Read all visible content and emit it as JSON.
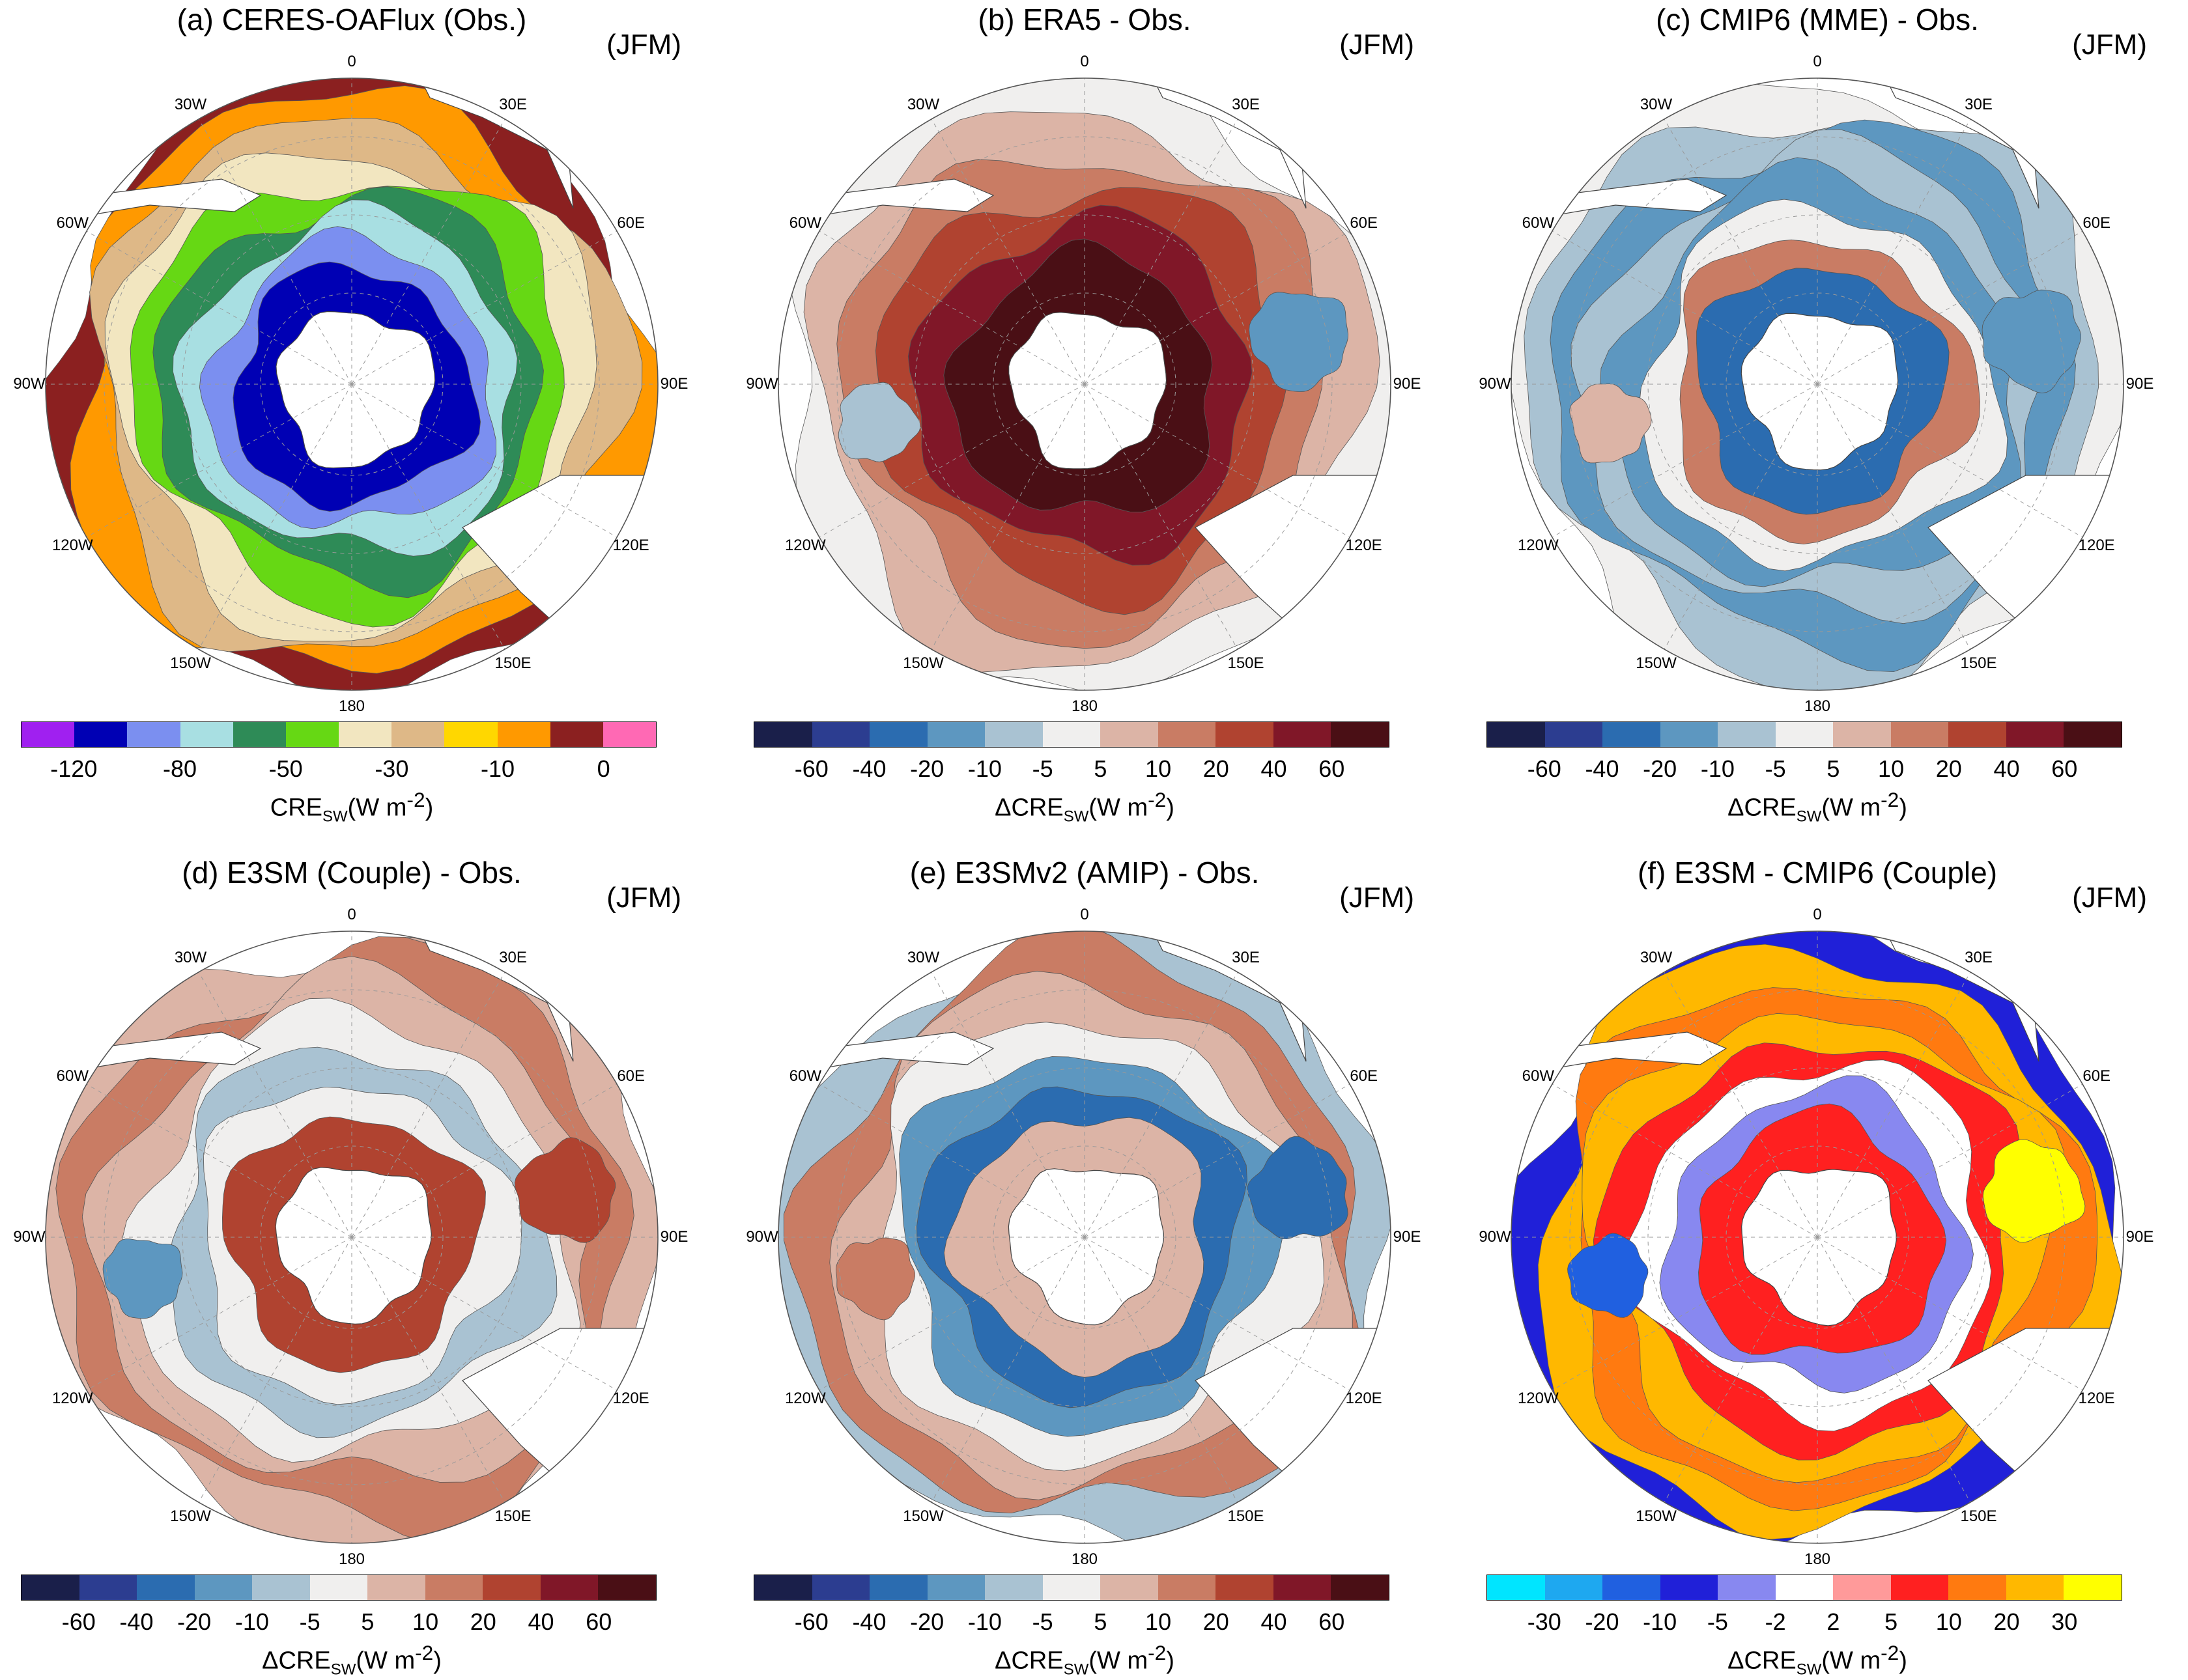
{
  "figure": {
    "lon_labels": [
      "0",
      "30E",
      "60E",
      "90E",
      "120E",
      "150E",
      "180",
      "150W",
      "120W",
      "90W",
      "60W",
      "30W"
    ],
    "scale_sets": {
      "obs": {
        "colors": [
          "#a020f0",
          "#0000b4",
          "#7b8ff0",
          "#a8dfe2",
          "#2e8b57",
          "#66d814",
          "#f2e6c0",
          "#deb887",
          "#ffd700",
          "#ff9900",
          "#8b2020",
          "#ff69b4"
        ],
        "ticks": [
          "-120",
          "-80",
          "-50",
          "-30",
          "-10",
          "0"
        ],
        "tick_slots": [
          1,
          3,
          5,
          7,
          9,
          11
        ]
      },
      "diff": {
        "colors": [
          "#1a1f4a",
          "#2c3d90",
          "#2b6cb0",
          "#5d97c0",
          "#a9c2d2",
          "#f0efee",
          "#dcb4a6",
          "#c97c64",
          "#b04330",
          "#801728",
          "#4a0f15"
        ],
        "ticks": [
          "-60",
          "-40",
          "-20",
          "-10",
          "-5",
          "5",
          "10",
          "20",
          "40",
          "60"
        ],
        "tick_slots": [
          1,
          2,
          3,
          4,
          5,
          6,
          7,
          8,
          9,
          10
        ]
      },
      "model": {
        "colors": [
          "#00e5ff",
          "#1ea8f0",
          "#2060e0",
          "#2020d8",
          "#8888f0",
          "#ffffff",
          "#ff9a9a",
          "#ff2020",
          "#ff7a10",
          "#ffb800",
          "#ffff00"
        ],
        "ticks": [
          "-30",
          "-20",
          "-10",
          "-5",
          "-2",
          "2",
          "5",
          "10",
          "20",
          "30"
        ],
        "tick_slots": [
          1,
          2,
          3,
          4,
          5,
          6,
          7,
          8,
          9,
          10
        ]
      }
    },
    "panels": [
      {
        "title": "(a) CERES-OAFlux (Obs.)",
        "season": "(JFM)",
        "scale": "obs",
        "unit_main": "CRE",
        "unit_sub": "SW",
        "unit_tail": "(W m",
        "unit_exp": "-2",
        "unit_close": ")",
        "rings": [
          10,
          9,
          7,
          6,
          5,
          4,
          3,
          2,
          1
        ],
        "blobs": []
      },
      {
        "title": "(b) ERA5 - Obs.",
        "season": "(JFM)",
        "scale": "diff",
        "unit_main": "ΔCRE",
        "unit_sub": "SW",
        "unit_tail": "(W m",
        "unit_exp": "-2",
        "unit_close": ")",
        "rings": [
          5,
          6,
          7,
          8,
          9,
          10
        ],
        "blobs": [
          4,
          3
        ]
      },
      {
        "title": "(c) CMIP6 (MME) - Obs.",
        "season": "(JFM)",
        "scale": "diff",
        "unit_main": "ΔCRE",
        "unit_sub": "SW",
        "unit_tail": "(W m",
        "unit_exp": "-2",
        "unit_close": ")",
        "rings": [
          5,
          4,
          3,
          4,
          3,
          5,
          7,
          2
        ],
        "blobs": [
          6,
          3
        ]
      },
      {
        "title": "(d) E3SM (Couple) - Obs.",
        "season": "(JFM)",
        "scale": "diff",
        "unit_main": "ΔCRE",
        "unit_sub": "SW",
        "unit_tail": "(W m",
        "unit_exp": "-2",
        "unit_close": ")",
        "rings": [
          6,
          7,
          6,
          5,
          4,
          5,
          8
        ],
        "blobs": [
          3,
          8
        ]
      },
      {
        "title": "(e) E3SMv2 (AMIP) - Obs.",
        "season": "(JFM)",
        "scale": "diff",
        "unit_main": "ΔCRE",
        "unit_sub": "SW",
        "unit_tail": "(W m",
        "unit_exp": "-2",
        "unit_close": ")",
        "rings": [
          4,
          7,
          6,
          5,
          3,
          2,
          6
        ],
        "blobs": [
          7,
          2
        ]
      },
      {
        "title": "(f) E3SM - CMIP6 (Couple)",
        "season": "(JFM)",
        "scale": "model",
        "unit_main": "ΔCRE",
        "unit_sub": "SW",
        "unit_tail": "(W m",
        "unit_exp": "-2",
        "unit_close": ")",
        "rings": [
          3,
          9,
          8,
          9,
          7,
          5,
          4,
          7
        ],
        "blobs": [
          2,
          10
        ]
      }
    ]
  }
}
